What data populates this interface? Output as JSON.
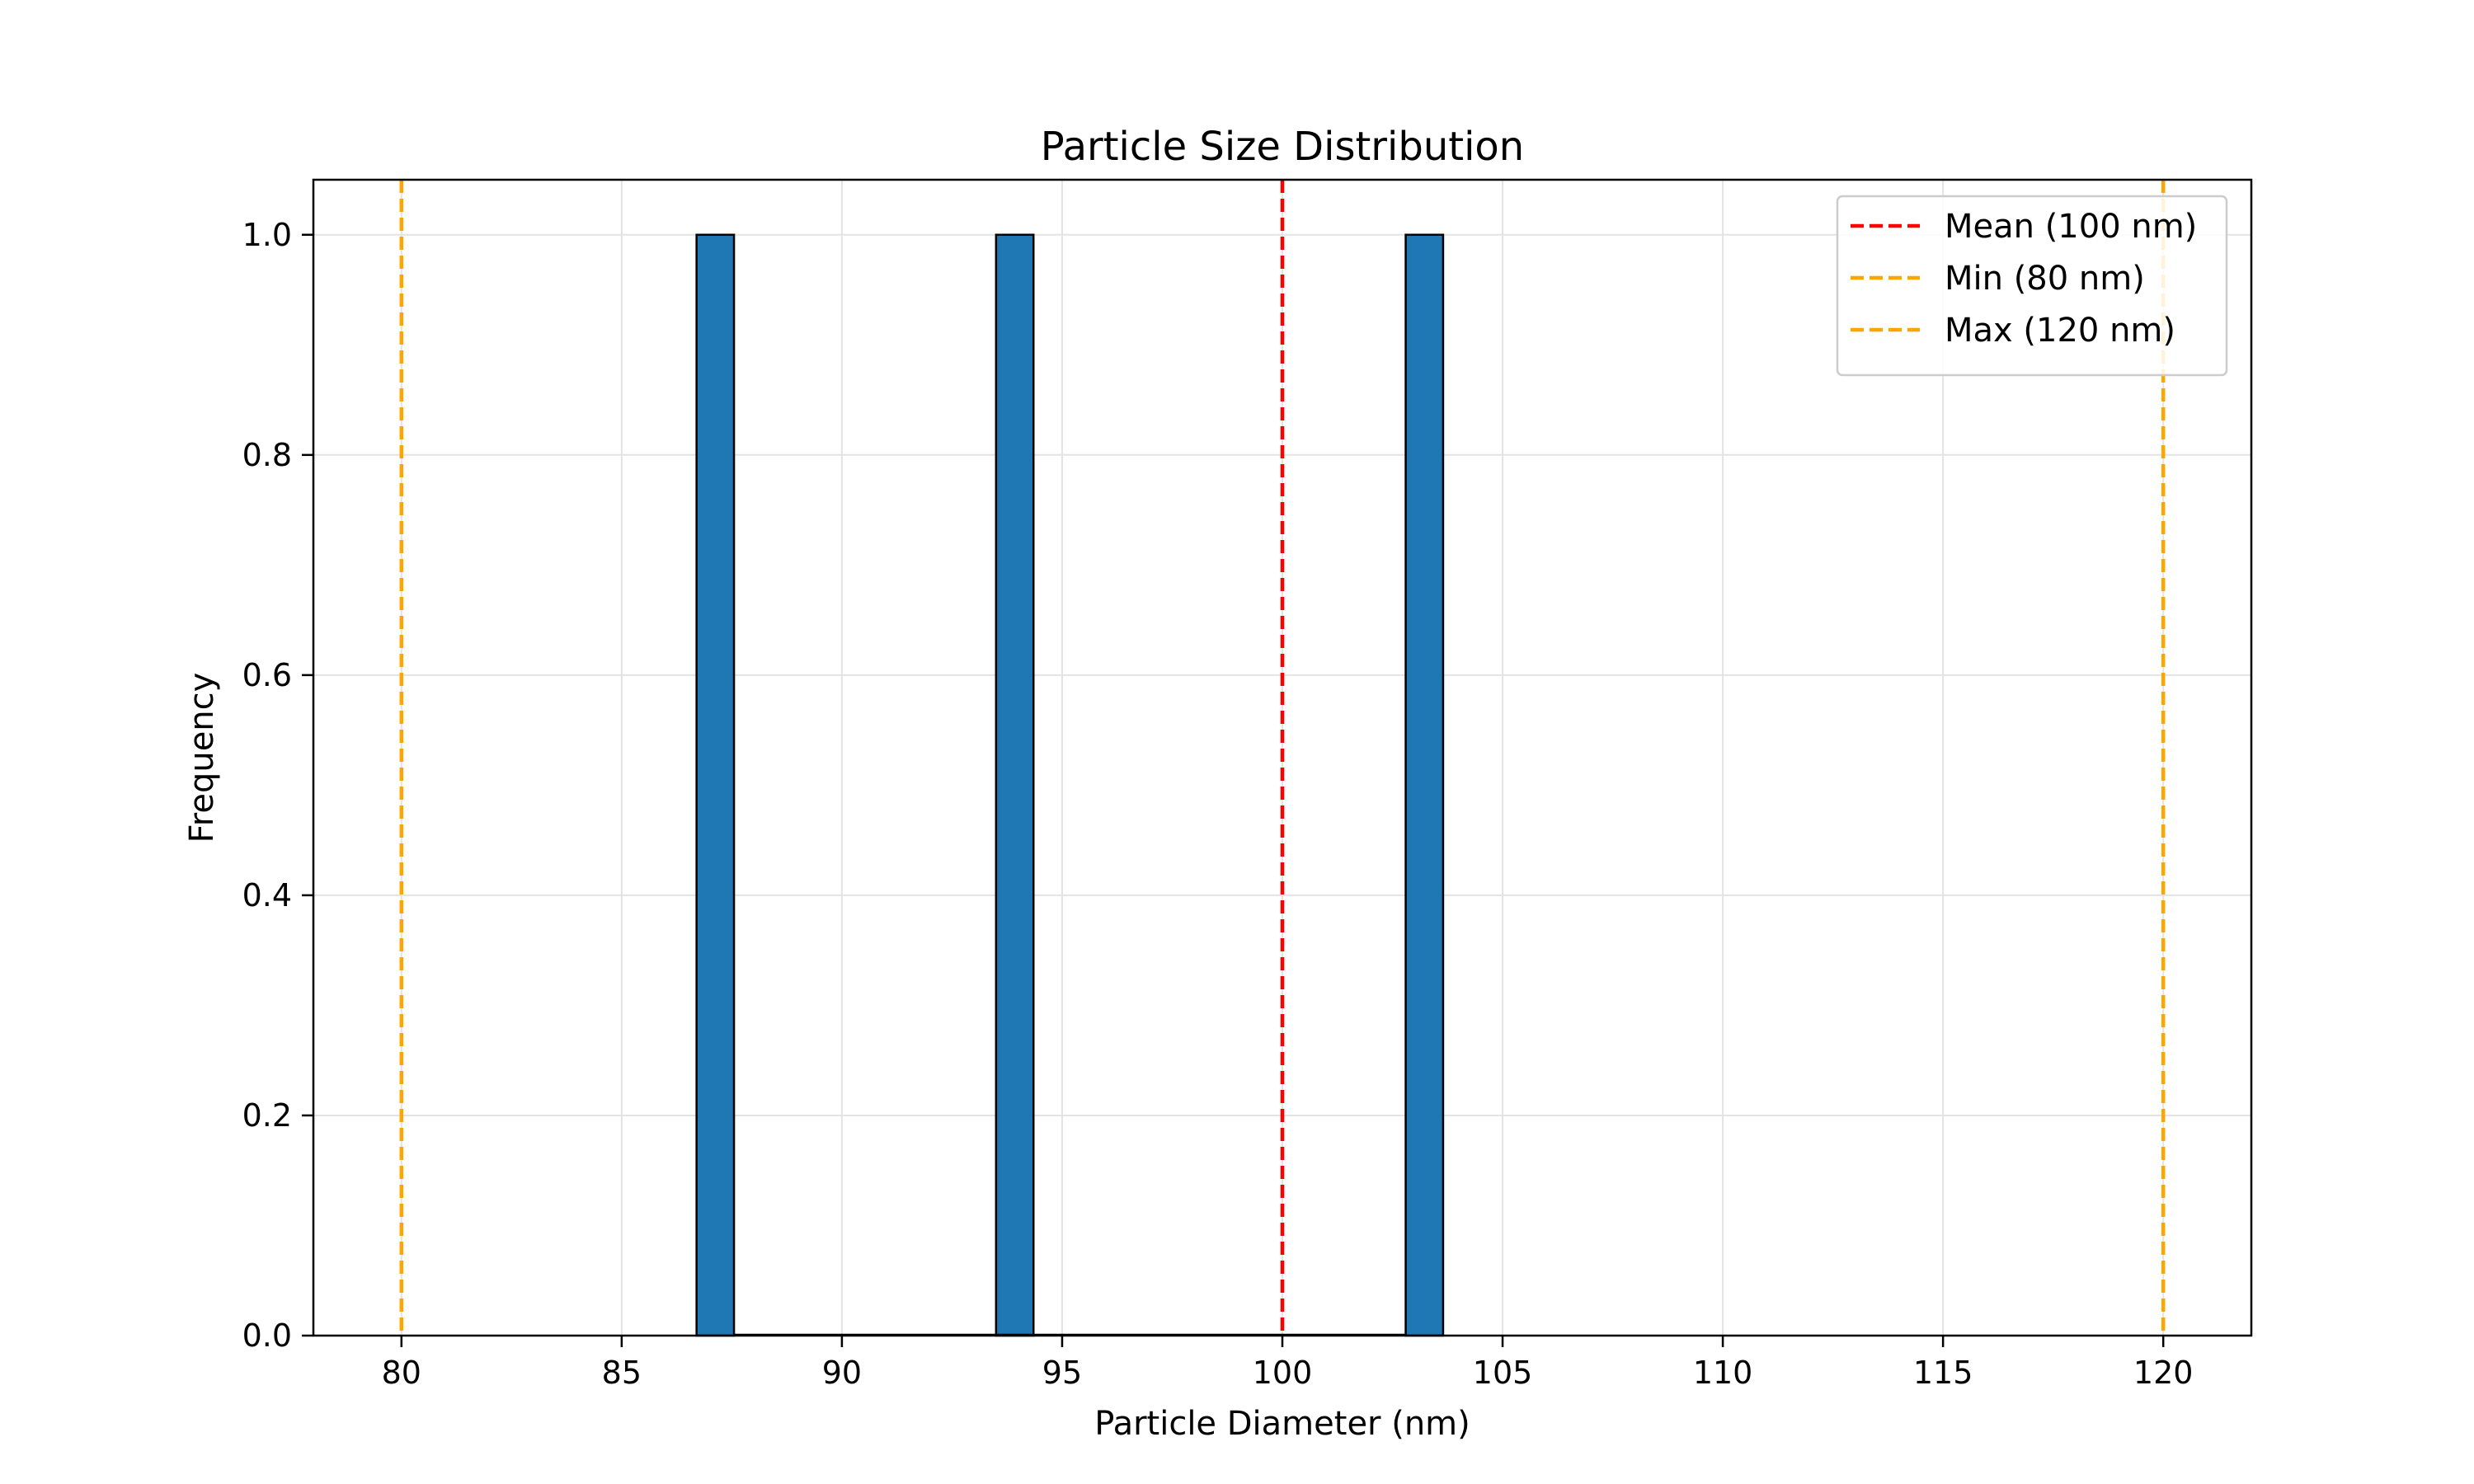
{
  "chart_data": {
    "type": "bar",
    "title": "Particle Size Distribution",
    "xlabel": "Particle Diameter (nm)",
    "ylabel": "Frequency",
    "xlim": [
      78,
      122
    ],
    "ylim": [
      0,
      1.05
    ],
    "xticks": [
      80,
      85,
      90,
      95,
      100,
      105,
      110,
      115,
      120
    ],
    "yticks": [
      0.0,
      0.2,
      0.4,
      0.6,
      0.8,
      1.0
    ],
    "ytick_labels": [
      "0.0",
      "0.2",
      "0.4",
      "0.6",
      "0.8",
      "1.0"
    ],
    "grid": true,
    "bar_color": "#1f77b4",
    "bin_edges": [
      86.7,
      87.55,
      93.5,
      94.35,
      102.8,
      103.65
    ],
    "bins": [
      {
        "start": 86.7,
        "end": 87.55,
        "value": 1
      },
      {
        "start": 93.5,
        "end": 94.35,
        "value": 1
      },
      {
        "start": 102.8,
        "end": 103.65,
        "value": 1
      }
    ],
    "baseline": {
      "start": 87.55,
      "end": 102.8,
      "value": 0
    },
    "reference_lines": [
      {
        "name": "Mean (100 nm)",
        "x": 100,
        "color": "#ff0000"
      },
      {
        "name": "Min (80 nm)",
        "x": 80,
        "color": "#ffa500"
      },
      {
        "name": "Max (120 nm)",
        "x": 120,
        "color": "#ffa500"
      }
    ],
    "legend_position": "top-right"
  }
}
